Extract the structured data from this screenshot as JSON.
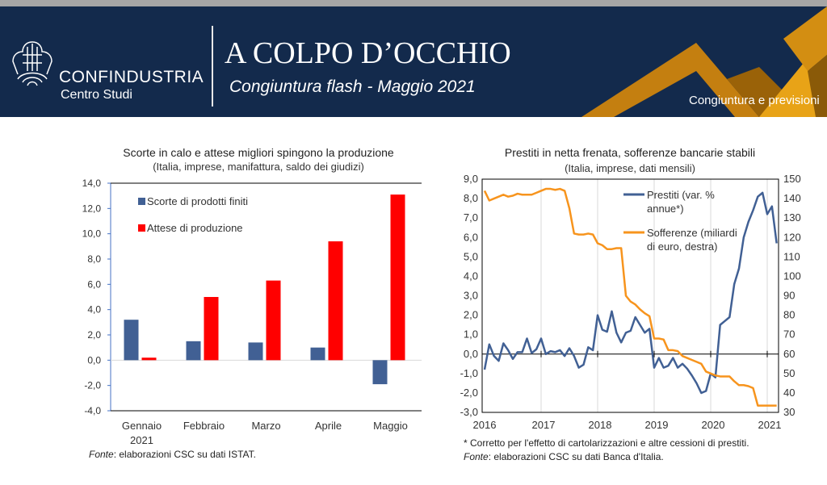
{
  "header": {
    "brand": "CONFINDUSTRIA",
    "brand_sub": "Centro Studi",
    "title": "A COLPO D’OCCHIO",
    "subtitle": "Congiuntura flash - Maggio 2021",
    "tagline": "Congiuntura e previsioni",
    "bg_color": "#132a4c",
    "accent_color": "#e8a317"
  },
  "chart_data": [
    {
      "type": "bar",
      "title": "Scorte in calo e attese migliori spingono la produzione",
      "subtitle": "(Italia, imprese, manifattura, saldo dei giudizi)",
      "categories": [
        "Gennaio 2021",
        "Febbraio",
        "Marzo",
        "Aprile",
        "Maggio"
      ],
      "series": [
        {
          "name": "Scorte di prodotti finiti",
          "color": "#416094",
          "values": [
            3.2,
            1.5,
            1.4,
            1.0,
            -1.9
          ]
        },
        {
          "name": "Attese di produzione",
          "color": "#ff0000",
          "values": [
            0.2,
            5.0,
            6.3,
            9.4,
            13.1
          ]
        }
      ],
      "ylim": [
        -4,
        14
      ],
      "yticks": [
        "14,0",
        "12,0",
        "10,0",
        "8,0",
        "6,0",
        "4,0",
        "2,0",
        "0,0",
        "-2,0",
        "-4,0"
      ],
      "legend": "top-left",
      "grid": false,
      "note": "elaborazioni CSC su dati ISTAT.",
      "note_prefix": "Fonte"
    },
    {
      "type": "line",
      "title": "Prestiti in netta frenata, sofferenze bancarie stabili",
      "subtitle": "(Italia, imprese, dati mensili)",
      "x_start": "2016-01",
      "x_end": "2021-03",
      "frequency": "monthly",
      "xticks": [
        "2016",
        "2017",
        "2018",
        "2019",
        "2020",
        "2021"
      ],
      "ylim": [
        -3,
        9
      ],
      "yticks": [
        "9,0",
        "8,0",
        "7,0",
        "6,0",
        "5,0",
        "4,0",
        "3,0",
        "2,0",
        "1,0",
        "0,0",
        "-1,0",
        "-2,0",
        "-3,0"
      ],
      "y2lim": [
        30,
        150
      ],
      "y2ticks": [
        "150",
        "140",
        "130",
        "120",
        "110",
        "100",
        "90",
        "80",
        "70",
        "60",
        "50",
        "40",
        "30"
      ],
      "legend": "top-right",
      "grid": "vertical",
      "series": [
        {
          "name": "Prestiti (var. % annue*)",
          "axis": "left",
          "color": "#416094",
          "values": [
            -0.8,
            0.5,
            -0.1,
            -0.35,
            0.55,
            0.2,
            -0.25,
            0.1,
            0.1,
            0.8,
            0.05,
            0.25,
            0.8,
            0.0,
            0.15,
            0.1,
            0.2,
            -0.1,
            0.3,
            -0.1,
            -0.7,
            -0.55,
            0.35,
            0.2,
            2.0,
            1.25,
            1.15,
            2.2,
            1.1,
            0.6,
            1.1,
            1.2,
            1.9,
            1.5,
            1.1,
            1.3,
            -0.7,
            -0.2,
            -0.7,
            -0.6,
            -0.2,
            -0.7,
            -0.5,
            -0.75,
            -1.1,
            -1.5,
            -2.0,
            -1.9,
            -1.0,
            -1.2,
            1.5,
            1.7,
            1.9,
            3.6,
            4.4,
            6.0,
            6.8,
            7.4,
            8.1,
            8.3,
            7.2,
            7.6,
            5.7
          ]
        },
        {
          "name": "Sofferenze (miliardi di euro, destra)",
          "axis": "right",
          "color": "#f7941d",
          "values": [
            144,
            139,
            140,
            141,
            142,
            141,
            141.5,
            142.5,
            142,
            142,
            142,
            143,
            144,
            145,
            145,
            144.5,
            145,
            144,
            135,
            122,
            121.5,
            121.5,
            122,
            121.5,
            117,
            116,
            114,
            114,
            114.5,
            114.5,
            90,
            87,
            85.5,
            83,
            81,
            79.5,
            68,
            68,
            67.5,
            62,
            62,
            61.5,
            59,
            58,
            57,
            56,
            55,
            51,
            50,
            49,
            48.5,
            48.5,
            48.5,
            46,
            44,
            44,
            43.5,
            42.5,
            33.5,
            33.5,
            33.5,
            33.5,
            33.5
          ]
        }
      ],
      "legend_lines": [
        [
          "Prestiti (var. %",
          "annue*)"
        ],
        [
          "Sofferenze (miliardi",
          "di euro, destra)"
        ]
      ],
      "footnote": "* Corretto per l'effetto di cartolarizzazioni e altre cessioni di prestiti.",
      "note": "elaborazioni CSC su dati Banca d'Italia.",
      "note_prefix": "Fonte"
    }
  ]
}
